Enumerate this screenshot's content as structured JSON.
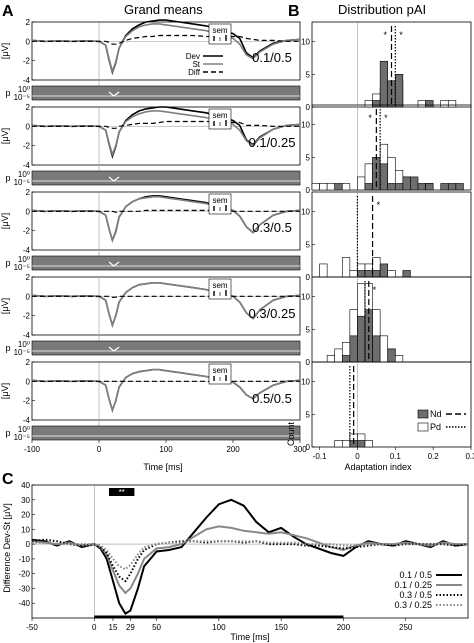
{
  "panels": {
    "a": {
      "letter": "A",
      "title": "Grand means",
      "xlabel": "Time [ms]",
      "xticks": [
        "-100",
        "0",
        "100",
        "200",
        "300"
      ],
      "ylabel_erp": "[μV]",
      "ylabel_p": "p",
      "yticks_erp": [
        "2",
        "0",
        "-2",
        "-4"
      ],
      "yticks_p": [
        "10⁰",
        "10⁻⁵"
      ],
      "sem_label": "sem",
      "legend": [
        "Dev",
        "St",
        "Diff"
      ]
    },
    "b": {
      "letter": "B",
      "title": "Distribution pAI",
      "xlabel": "Adaptation index",
      "ylabel": "Count",
      "xticks": [
        "-0.1",
        "0",
        "0.1",
        "0.2",
        "0.3"
      ],
      "yticks": [
        "0",
        "5",
        "10"
      ],
      "legend": [
        "Nd",
        "Pd"
      ],
      "star": "*"
    },
    "c": {
      "letter": "C",
      "xlabel": "Time [ms]",
      "ylabel": "Difference Dev-St [μV]",
      "xticks": [
        "-50",
        "0",
        "15",
        "29",
        "50",
        "100",
        "150",
        "200",
        "250"
      ],
      "yticks": [
        "40",
        "30",
        "20",
        "10",
        "0",
        "-10",
        "-20",
        "-30",
        "-40"
      ],
      "sig_label": "**",
      "legend": [
        "0.1 / 0.5",
        "0.1 / 0.25",
        "0.3 / 0.5",
        "0.3 / 0.25"
      ]
    }
  },
  "conditions": [
    "0.1/0.5",
    "0.1/0.25",
    "0.3/0.5",
    "0.3/0.25",
    "0.5/0.5"
  ],
  "colors": {
    "nd": "#6e6e6e",
    "pd": "#ffffff",
    "pbar": "#7a7a7a",
    "dev": "#000000",
    "st": "#808080"
  },
  "chart_data": [
    {
      "type": "line",
      "panel": "A",
      "title": "Grand means",
      "xlabel": "Time [ms]",
      "ylabel": "[μV]",
      "xlim": [
        -100,
        300
      ],
      "ylim": [
        -4,
        2
      ],
      "series_kinds": [
        "Dev",
        "St",
        "Diff"
      ],
      "x": [
        -100,
        -80,
        -60,
        -40,
        -20,
        0,
        10,
        15,
        20,
        25,
        30,
        40,
        50,
        60,
        70,
        80,
        90,
        100,
        120,
        140,
        160,
        180,
        200,
        210,
        220,
        230,
        240,
        260,
        280,
        300
      ],
      "rows": [
        {
          "condition": "0.1/0.5",
          "Dev": [
            0.1,
            0,
            0.05,
            0,
            0.05,
            0,
            -0.4,
            -1.9,
            -3.2,
            -2.2,
            -0.7,
            0.6,
            1.3,
            1.7,
            2.0,
            2.1,
            2.2,
            2.2,
            2.0,
            1.8,
            1.6,
            1.2,
            0.8,
            0.3,
            -1.2,
            -1.7,
            -1.0,
            -0.2,
            0.1,
            0.2
          ],
          "St": [
            0.1,
            0,
            0.05,
            0,
            0.05,
            0,
            -0.4,
            -1.8,
            -3.1,
            -2.1,
            -0.7,
            0.5,
            1.1,
            1.5,
            1.7,
            1.8,
            1.8,
            1.7,
            1.5,
            1.3,
            1.1,
            0.7,
            0.3,
            -0.3,
            -1.4,
            -1.8,
            -1.1,
            -0.3,
            0.1,
            0.2
          ],
          "Diff": [
            0,
            0,
            0,
            0,
            0,
            0,
            0,
            -0.1,
            -0.3,
            -0.3,
            -0.2,
            0.1,
            0.3,
            0.4,
            0.5,
            0.5,
            0.6,
            0.6,
            0.6,
            0.6,
            0.5,
            0.5,
            0.5,
            0.5,
            0.3,
            0.2,
            0.1,
            0.1,
            0,
            0
          ]
        },
        {
          "condition": "0.1/0.25",
          "Dev": [
            0.1,
            0,
            0.05,
            0,
            0.05,
            0,
            -0.4,
            -1.8,
            -3.1,
            -2.1,
            -0.6,
            0.6,
            1.2,
            1.6,
            1.8,
            1.9,
            2.0,
            2.0,
            1.8,
            1.6,
            1.4,
            1.0,
            0.6,
            0.1,
            -1.4,
            -1.9,
            -1.1,
            -0.3,
            0.1,
            0.2
          ],
          "St": [
            0.1,
            0,
            0.05,
            0,
            0.05,
            0,
            -0.4,
            -1.7,
            -2.9,
            -2.0,
            -0.6,
            0.5,
            1.0,
            1.3,
            1.5,
            1.6,
            1.6,
            1.5,
            1.3,
            1.1,
            0.9,
            0.5,
            0.2,
            -0.4,
            -1.5,
            -2.0,
            -1.2,
            -0.3,
            0.1,
            0.2
          ],
          "Diff": [
            0,
            0,
            0,
            0,
            0,
            0,
            0,
            -0.1,
            -0.2,
            -0.2,
            0,
            0.1,
            0.2,
            0.3,
            0.3,
            0.3,
            0.4,
            0.5,
            0.5,
            0.5,
            0.5,
            0.5,
            0.4,
            0.4,
            0.1,
            0.1,
            0.1,
            0,
            0,
            0
          ]
        },
        {
          "condition": "0.3/0.5",
          "Dev": [
            0.1,
            0,
            0.05,
            0,
            0.05,
            0,
            -0.4,
            -1.8,
            -3.0,
            -2.1,
            -0.6,
            0.5,
            1.0,
            1.3,
            1.5,
            1.6,
            1.6,
            1.5,
            1.3,
            1.1,
            0.9,
            0.5,
            0.1,
            -0.5,
            -1.6,
            -2.2,
            -1.4,
            -0.4,
            0,
            0.1
          ],
          "St": [
            0.1,
            0,
            0.05,
            0,
            0.05,
            0,
            -0.4,
            -1.8,
            -3.0,
            -2.0,
            -0.6,
            0.5,
            1.0,
            1.3,
            1.4,
            1.5,
            1.5,
            1.4,
            1.2,
            1.0,
            0.8,
            0.4,
            0.1,
            -0.5,
            -1.6,
            -2.2,
            -1.4,
            -0.4,
            0,
            0.1
          ],
          "Diff": [
            0,
            0,
            0,
            0,
            0,
            0,
            0,
            0,
            0,
            -0.1,
            0,
            0,
            0,
            0,
            0.1,
            0.1,
            0.1,
            0.1,
            0.1,
            0.1,
            0.1,
            0.1,
            0,
            0,
            0,
            0,
            0,
            0,
            0,
            0
          ]
        },
        {
          "condition": "0.3/0.25",
          "Dev": [
            0.1,
            0,
            0.05,
            0,
            0.05,
            0,
            -0.4,
            -1.8,
            -3.0,
            -2.0,
            -0.6,
            0.4,
            0.9,
            1.2,
            1.3,
            1.4,
            1.4,
            1.3,
            1.1,
            0.9,
            0.7,
            0.3,
            0,
            -0.6,
            -1.7,
            -2.3,
            -1.4,
            -0.4,
            0,
            0.1
          ],
          "St": [
            0.1,
            0,
            0.05,
            0,
            0.05,
            0,
            -0.4,
            -1.8,
            -3.0,
            -2.0,
            -0.6,
            0.4,
            0.9,
            1.2,
            1.3,
            1.4,
            1.4,
            1.3,
            1.1,
            0.9,
            0.7,
            0.3,
            0,
            -0.6,
            -1.7,
            -2.3,
            -1.4,
            -0.4,
            0,
            0.1
          ],
          "Diff": [
            0,
            0,
            0,
            0,
            0,
            0,
            0,
            0,
            -0.1,
            -0.1,
            0,
            0,
            0,
            0,
            0,
            0,
            0,
            0,
            0,
            0,
            0,
            0,
            0,
            0,
            0,
            0,
            0,
            0,
            0,
            0
          ]
        },
        {
          "condition": "0.5/0.5",
          "Dev": [
            0.1,
            0,
            0.05,
            0,
            0.05,
            0,
            -0.4,
            -1.8,
            -3.0,
            -2.0,
            -0.6,
            0.4,
            0.8,
            1.0,
            1.1,
            1.2,
            1.2,
            1.1,
            0.9,
            0.7,
            0.5,
            0.2,
            -0.1,
            -0.6,
            -1.4,
            -1.8,
            -1.2,
            -0.4,
            0,
            0.1
          ],
          "St": [
            0.1,
            0,
            0.05,
            0,
            0.05,
            0,
            -0.4,
            -1.8,
            -3.0,
            -2.0,
            -0.6,
            0.4,
            0.8,
            1.0,
            1.1,
            1.2,
            1.2,
            1.1,
            0.9,
            0.7,
            0.5,
            0.2,
            -0.1,
            -0.6,
            -1.4,
            -1.8,
            -1.2,
            -0.4,
            0,
            0.1
          ],
          "Diff": [
            0,
            0,
            0,
            0,
            0,
            0,
            0,
            0,
            0,
            0,
            0,
            0,
            0,
            0,
            0,
            0,
            0,
            0,
            0,
            0,
            0,
            0,
            0,
            0,
            0,
            0,
            0,
            0,
            0,
            0
          ]
        }
      ]
    },
    {
      "type": "bar",
      "panel": "B",
      "title": "Distribution pAI",
      "xlabel": "Adaptation index",
      "ylabel": "Count",
      "xlim": [
        -0.12,
        0.3
      ],
      "ylim": [
        0,
        13
      ],
      "bin_width": 0.02,
      "bin_centers": [
        -0.11,
        -0.09,
        -0.07,
        -0.05,
        -0.03,
        -0.01,
        0.01,
        0.03,
        0.05,
        0.07,
        0.09,
        0.11,
        0.13,
        0.15,
        0.17,
        0.19,
        0.21,
        0.23,
        0.25,
        0.27
      ],
      "rows": [
        {
          "condition": "0.1/0.5",
          "Nd": [
            0,
            0,
            0,
            0,
            0,
            0,
            0,
            0,
            1,
            7,
            4,
            5,
            0,
            0,
            0,
            1,
            0,
            0,
            0,
            0
          ],
          "Pd": [
            0,
            0,
            0,
            0,
            0,
            0,
            0,
            1,
            2,
            3,
            4,
            4,
            0,
            0,
            1,
            0,
            0,
            1,
            1,
            0
          ],
          "median_nd": 0.09,
          "median_pd": 0.1
        },
        {
          "condition": "0.1/0.25",
          "Nd": [
            0,
            0,
            0,
            1,
            0,
            0,
            0,
            1,
            5,
            4,
            1,
            1,
            2,
            2,
            1,
            1,
            0,
            1,
            1,
            1
          ],
          "Pd": [
            1,
            1,
            1,
            0,
            1,
            0,
            2,
            4,
            5,
            7,
            5,
            3,
            2,
            0,
            0,
            1,
            0,
            0,
            0,
            0
          ],
          "median_nd": 0.05,
          "median_pd": 0.06
        },
        {
          "condition": "0.3/0.5",
          "Nd": [
            0,
            0,
            0,
            0,
            0,
            0,
            1,
            1,
            1,
            2,
            0,
            0,
            1,
            0,
            0,
            0,
            0,
            0,
            0,
            0
          ],
          "Pd": [
            0,
            2,
            0,
            0,
            3,
            1,
            2,
            2,
            3,
            1,
            1,
            0,
            0,
            0,
            0,
            0,
            0,
            0,
            0,
            0
          ],
          "median_nd": 0.04,
          "median_pd": 0.0
        },
        {
          "condition": "0.3/0.25",
          "Nd": [
            0,
            0,
            0,
            0,
            1,
            4,
            7,
            8,
            4,
            0,
            2,
            0,
            0,
            0,
            0,
            0,
            0,
            0,
            0,
            0
          ],
          "Pd": [
            0,
            0,
            1,
            2,
            3,
            8,
            12,
            12,
            8,
            4,
            2,
            1,
            0,
            0,
            0,
            0,
            0,
            0,
            0,
            0
          ],
          "median_nd": 0.03,
          "median_pd": 0.02
        },
        {
          "condition": "0.5/0.5",
          "Nd": [
            0,
            0,
            0,
            0,
            0,
            1,
            1,
            0,
            0,
            0,
            0,
            0,
            0,
            0,
            0,
            0,
            0,
            0,
            0,
            0
          ],
          "Pd": [
            0,
            0,
            0,
            1,
            1,
            2,
            2,
            1,
            0,
            0,
            0,
            0,
            0,
            0,
            0,
            0,
            0,
            0,
            0,
            0
          ],
          "median_nd": -0.01,
          "median_pd": -0.02
        }
      ]
    },
    {
      "type": "line",
      "panel": "C",
      "xlabel": "Time [ms]",
      "ylabel": "Difference Dev-St [μV]",
      "xlim": [
        -50,
        300
      ],
      "ylim": [
        -50,
        40
      ],
      "significance_window": [
        15,
        29
      ],
      "x": [
        -50,
        -40,
        -30,
        -20,
        -10,
        0,
        5,
        10,
        15,
        20,
        25,
        29,
        35,
        40,
        50,
        60,
        70,
        80,
        90,
        100,
        110,
        120,
        130,
        140,
        150,
        160,
        170,
        180,
        190,
        200,
        210,
        220,
        230,
        240,
        250,
        260,
        270,
        280,
        290,
        300
      ],
      "series": [
        {
          "name": "0.1 / 0.5",
          "values": [
            3,
            2,
            -1,
            2,
            -2,
            0,
            -3,
            -10,
            -25,
            -40,
            -47,
            -45,
            -30,
            -15,
            -5,
            -4,
            -2,
            8,
            18,
            27,
            30,
            26,
            15,
            8,
            11,
            5,
            0,
            -3,
            -6,
            -8,
            -2,
            2,
            0,
            -1,
            2,
            0,
            -2,
            2,
            -1,
            0
          ]
        },
        {
          "name": "0.1 / 0.25",
          "values": [
            2,
            1,
            0,
            1,
            -1,
            0,
            -2,
            -7,
            -18,
            -28,
            -33,
            -30,
            -20,
            -10,
            -3,
            -2,
            0,
            5,
            10,
            12,
            11,
            9,
            8,
            7,
            8,
            6,
            4,
            1,
            -2,
            -4,
            -1,
            1,
            0,
            0,
            1,
            0,
            -1,
            1,
            0,
            0
          ]
        },
        {
          "name": "0.3 / 0.5",
          "values": [
            2,
            3,
            2,
            0,
            -1,
            0,
            -2,
            -6,
            -15,
            -22,
            -25,
            -20,
            -10,
            -4,
            0,
            1,
            2,
            2,
            1,
            2,
            2,
            1,
            2,
            0,
            0,
            0,
            -1,
            -1,
            -2,
            -3,
            -2,
            -1,
            0,
            -1,
            0,
            0,
            0,
            0,
            -1,
            0
          ]
        },
        {
          "name": "0.3 / 0.25",
          "values": [
            1,
            1,
            0,
            0,
            0,
            0,
            -1,
            -4,
            -10,
            -15,
            -17,
            -14,
            -7,
            -2,
            0,
            1,
            1,
            2,
            2,
            2,
            2,
            2,
            2,
            1,
            1,
            1,
            0,
            0,
            0,
            -1,
            -1,
            0,
            0,
            0,
            0,
            0,
            0,
            0,
            0,
            0
          ]
        }
      ]
    }
  ]
}
